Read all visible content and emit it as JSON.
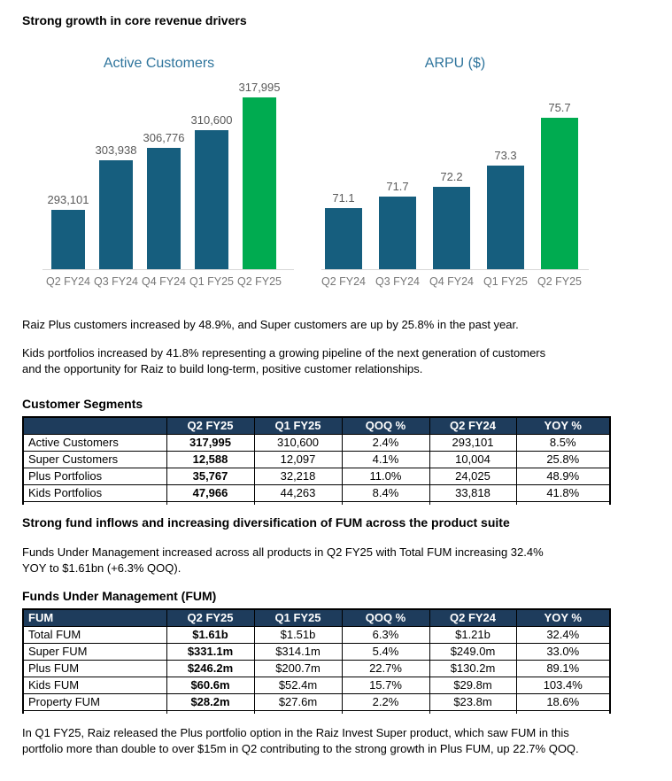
{
  "page": {
    "title": "Strong growth in core revenue drivers"
  },
  "colors": {
    "bar_teal": "#165E7E",
    "bar_highlight_green": "#00AB50",
    "table_header_navy": "#1E3C5C",
    "chart_title_blue": "#2E749C",
    "value_label_gray": "#595959",
    "axis_label_gray": "#767676",
    "baseline_gray": "#D8D8D8"
  },
  "chart_data": [
    {
      "type": "bar",
      "title": "Active Customers",
      "categories": [
        "Q2 FY24",
        "Q3 FY24",
        "Q4 FY24",
        "Q1 FY25",
        "Q2 FY25"
      ],
      "values": [
        293101,
        303938,
        306776,
        310600,
        317995
      ],
      "value_labels": [
        "293,101",
        "303,938",
        "306,776",
        "310,600",
        "317,995"
      ],
      "ylim": [
        280000,
        318100
      ],
      "highlight_last": true,
      "grid": false,
      "legend": "none"
    },
    {
      "type": "bar",
      "title": "ARPU ($)",
      "categories": [
        "Q2 FY24",
        "Q3 FY24",
        "Q4 FY24",
        "Q1 FY25",
        "Q2 FY25"
      ],
      "values": [
        71.1,
        71.7,
        72.2,
        73.3,
        75.7
      ],
      "value_labels": [
        "71.1",
        "71.7",
        "72.2",
        "73.3",
        "75.7"
      ],
      "ylim": [
        68,
        76.8
      ],
      "highlight_last": true,
      "grid": false,
      "legend": "none"
    }
  ],
  "paragraphs": {
    "p1": "Raiz Plus customers increased by 48.9%, and Super customers are up by 25.8% in the past year.",
    "p2": "Kids portfolios increased by 41.8% representing a growing pipeline of the next generation of customers and the opportunity for Raiz to build long-term, positive customer relationships.",
    "p3": "Funds Under Management increased across all products in Q2 FY25 with Total FUM increasing 32.4% YOY to $1.61bn (+6.3% QOQ).",
    "p4": "In Q1 FY25, Raiz released the Plus portfolio option in the Raiz Invest Super product, which saw FUM in this portfolio more than double to over $15m in Q2 contributing to the strong growth in Plus FUM, up 22.7% QOQ."
  },
  "sections": {
    "customer_segments_heading": "Customer Segments",
    "fum_section_heading": "Strong fund inflows and increasing diversification of FUM across the product suite",
    "fum_table_heading": "Funds Under Management (FUM)"
  },
  "tables": {
    "customer_segments": {
      "columns": [
        "",
        "Q2 FY25",
        "Q1 FY25",
        "QOQ %",
        "Q2 FY24",
        "YOY %"
      ],
      "rows": [
        [
          "Active Customers",
          "317,995",
          "310,600",
          "2.4%",
          "293,101",
          "8.5%"
        ],
        [
          "Super Customers",
          "12,588",
          "12,097",
          "4.1%",
          "10,004",
          "25.8%"
        ],
        [
          "Plus Portfolios",
          "35,767",
          "32,218",
          "11.0%",
          "24,025",
          "48.9%"
        ],
        [
          "Kids Portfolios",
          "47,966",
          "44,263",
          "8.4%",
          "33,818",
          "41.8%"
        ]
      ]
    },
    "fum": {
      "columns": [
        "FUM",
        "Q2 FY25",
        "Q1 FY25",
        "QOQ %",
        "Q2 FY24",
        "YOY %"
      ],
      "rows": [
        [
          "Total FUM",
          "$1.61b",
          "$1.51b",
          "6.3%",
          "$1.21b",
          "32.4%"
        ],
        [
          "Super FUM",
          "$331.1m",
          "$314.1m",
          "5.4%",
          "$249.0m",
          "33.0%"
        ],
        [
          "Plus FUM",
          "$246.2m",
          "$200.7m",
          "22.7%",
          "$130.2m",
          "89.1%"
        ],
        [
          "Kids FUM",
          "$60.6m",
          "$52.4m",
          "15.7%",
          "$29.8m",
          "103.4%"
        ],
        [
          "Property FUM",
          "$28.2m",
          "$27.6m",
          "2.2%",
          "$23.8m",
          "18.6%"
        ]
      ]
    }
  }
}
